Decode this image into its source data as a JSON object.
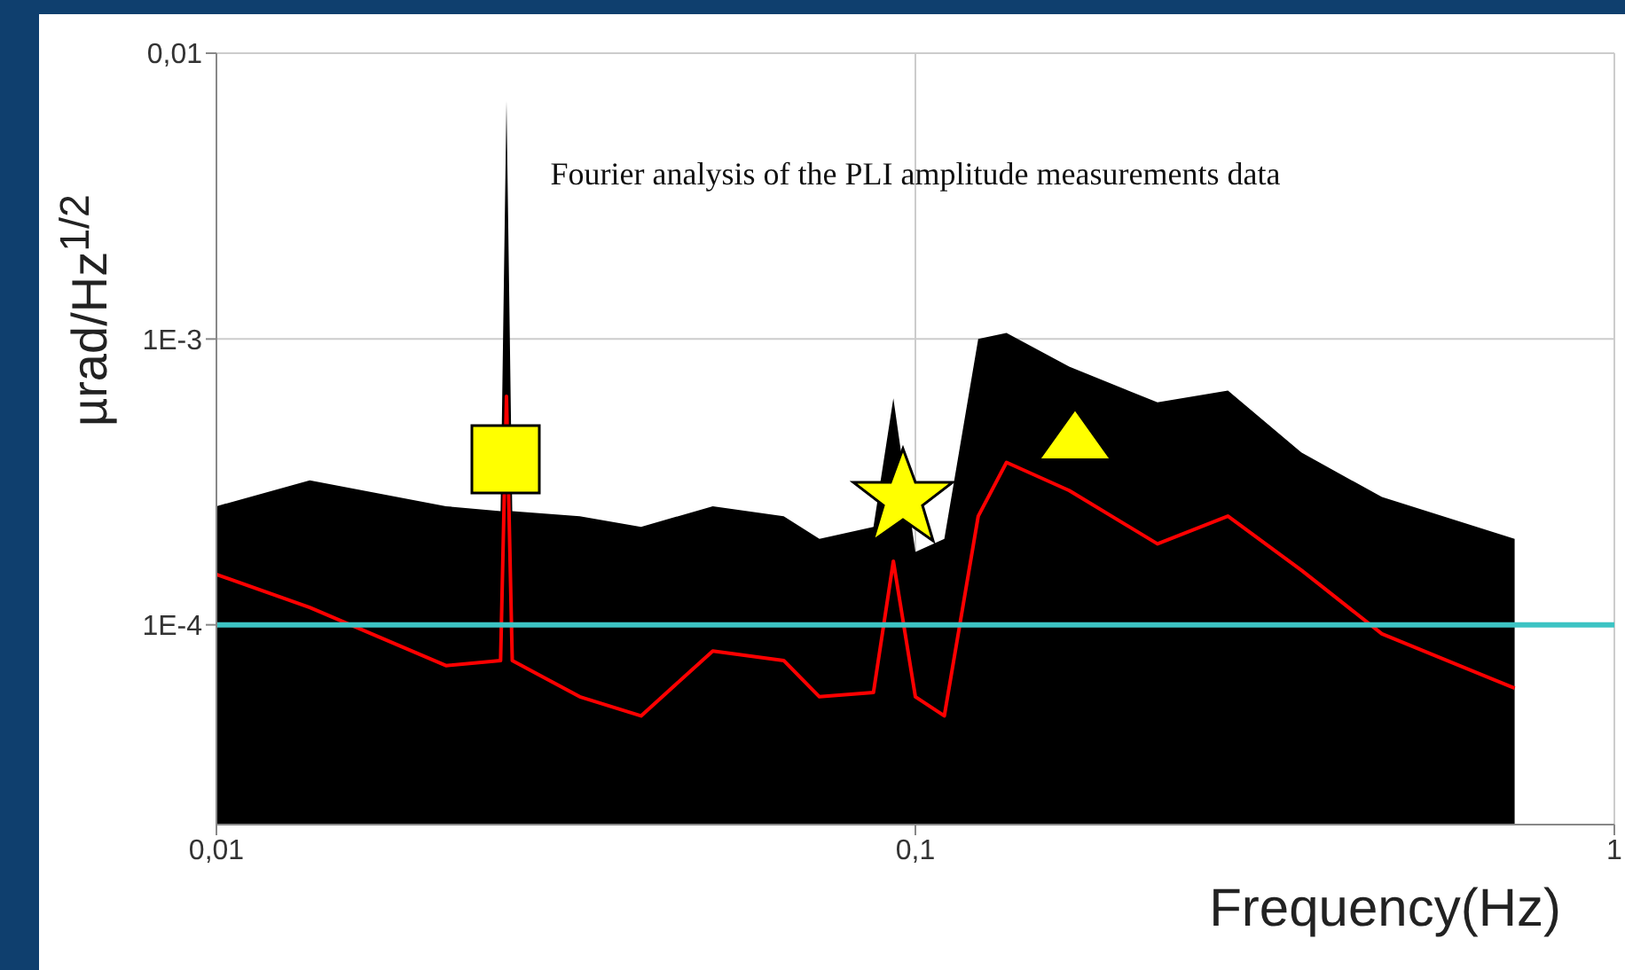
{
  "chart_data": {
    "type": "line",
    "title": "Fourier analysis of the PLI amplitude measurements data",
    "xlabel": "Frequency(Hz)",
    "ylabel": "µrad/Hz$^{1/2}$",
    "log": "xy",
    "grid": true,
    "legend": false,
    "marker": "none",
    "line_style": "solid",
    "xlim": [
      0.01,
      1
    ],
    "xticks": [
      {
        "value": 0.01,
        "label": "0,01"
      },
      {
        "value": 0.1,
        "label": "0,1"
      },
      1
    ],
    "ylim": [
      2e-05,
      0.01
    ],
    "yticks": [
      {
        "value": 0.0001,
        "label": "1E-4"
      },
      {
        "value": 0.001,
        "label": "1E-3"
      },
      {
        "value": 0.01,
        "label": "0,01"
      }
    ],
    "x": [
      0.01,
      0.0136,
      0.0213,
      0.0255,
      0.026,
      0.0265,
      0.0331,
      0.0405,
      0.0513,
      0.0648,
      0.0729,
      0.0871,
      0.093,
      0.1,
      0.11,
      0.123,
      0.135,
      0.166,
      0.222,
      0.28,
      0.357,
      0.465,
      0.72
    ],
    "series": [
      {
        "color": "#ff0000",
        "values": [
          0.00015,
          0.000115,
          7.2e-05,
          7.5e-05,
          0.00063,
          7.5e-05,
          5.6e-05,
          4.8e-05,
          8.1e-05,
          7.5e-05,
          5.6e-05,
          5.8e-05,
          0.000167,
          5.6e-05,
          4.8e-05,
          0.00024,
          0.00037,
          0.000295,
          0.000192,
          0.00024,
          0.000155,
          9.3e-05,
          6e-05
        ],
        "lower": [
          2e-05,
          2e-05,
          2e-05,
          2e-05,
          2e-05,
          2e-05,
          2e-05,
          2e-05,
          2e-05,
          2e-05,
          2e-05,
          2e-05,
          2e-05,
          2e-05,
          2e-05,
          2e-05,
          2e-05,
          2e-05,
          2e-05,
          2e-05,
          2e-05,
          2e-05,
          2e-05
        ],
        "upper": [
          0.00026,
          0.00032,
          0.00026,
          0.00025,
          0.0068,
          0.00025,
          0.00024,
          0.00022,
          0.00026,
          0.00024,
          0.0002,
          0.00022,
          0.00062,
          0.00018,
          0.0002,
          0.001,
          0.00105,
          0.0008,
          0.0006,
          0.00066,
          0.0004,
          0.00028,
          0.0002
        ]
      }
    ],
    "ref_lines": [
      {
        "axis": "y",
        "value": 0.0001,
        "color": "#3cc4c4"
      }
    ]
  }
}
